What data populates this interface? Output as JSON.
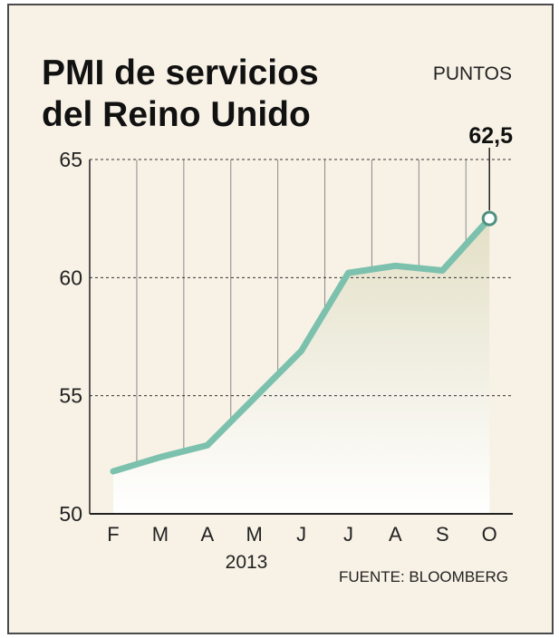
{
  "chart_data": {
    "type": "area",
    "title_lines": [
      "PMI de servicios",
      "del Reino Unido"
    ],
    "units_label": "PUNTOS",
    "categories": [
      "F",
      "M",
      "A",
      "M",
      "J",
      "J",
      "A",
      "S",
      "O"
    ],
    "year_label": "2013",
    "values": [
      51.8,
      52.4,
      52.9,
      54.9,
      56.9,
      60.2,
      60.5,
      60.3,
      62.5
    ],
    "y_ticks": [
      50,
      55,
      60,
      65
    ],
    "ylim": [
      50,
      65
    ],
    "highlight": {
      "index": 8,
      "label": "62,5"
    },
    "source": "FUENTE: BLOOMBERG",
    "colors": {
      "line": "#7cc1ad",
      "area_top": "#e3dfc6",
      "background": "#f8f2e6",
      "grid": "#333333"
    },
    "grid": true
  }
}
